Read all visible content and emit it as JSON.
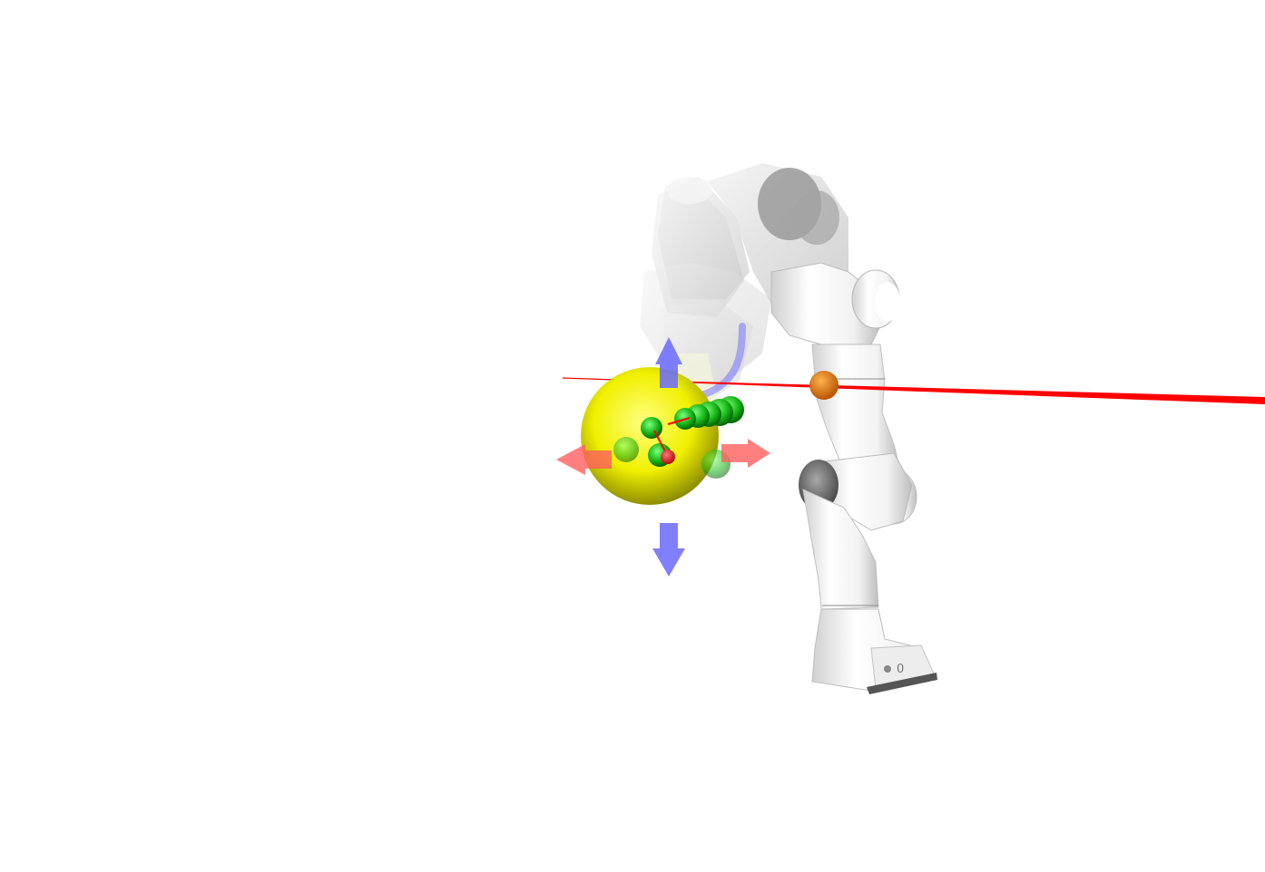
{
  "scene": {
    "background": "#ffffff",
    "colors": {
      "target_sphere": "#f2f200",
      "ray": "#ff0000",
      "intersection_marker": "#e07000",
      "waypoint": "#16b816",
      "waypoint_current": "#ff1010",
      "arrow_vertical": "#6a6aff",
      "arrow_horizontal": "#ff6060",
      "robot_body": "#f4f4f4",
      "robot_ghost": "#909090",
      "trajectory_path": "#6a6aff"
    },
    "objects": {
      "target_sphere": "target-sphere",
      "ray": "raycast-line",
      "intersection_marker": "ray-hit-marker",
      "arrows": [
        "move-up-arrow",
        "move-down-arrow",
        "move-left-arrow",
        "move-right-arrow"
      ],
      "robot": "franka-panda-arm",
      "ghosts": "ghost-trajectory-poses",
      "waypoints": "waypoint-markers"
    },
    "base_label": "0"
  }
}
